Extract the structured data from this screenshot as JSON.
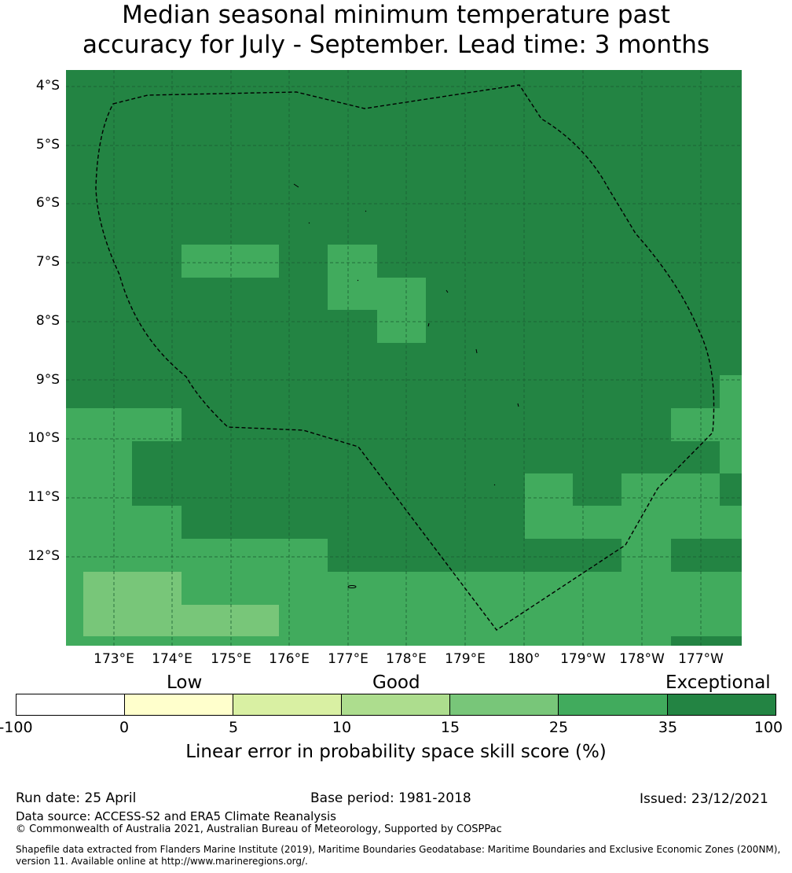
{
  "title_line1": "Median seasonal minimum temperature past",
  "title_line2": "accuracy for July - September. Lead time: 3 months",
  "lat_labels": [
    "4°S",
    "5°S",
    "6°S",
    "7°S",
    "8°S",
    "9°S",
    "10°S",
    "11°S",
    "12°S"
  ],
  "lon_labels": [
    "173°E",
    "174°E",
    "175°E",
    "176°E",
    "177°E",
    "178°E",
    "179°E",
    "180°",
    "179°W",
    "178°W",
    "177°W"
  ],
  "categories": {
    "low": "Low",
    "good": "Good",
    "exceptional": "Exceptional"
  },
  "colorbar": {
    "ticks": [
      "-100",
      "0",
      "5",
      "10",
      "15",
      "25",
      "35",
      "100"
    ],
    "colors": [
      "#ffffff",
      "#ffffcc",
      "#d9f0a3",
      "#addd8e",
      "#78c679",
      "#41ab5d",
      "#238443"
    ],
    "label": "Linear error in probability space skill score (%)"
  },
  "footer": {
    "run_date": "Run date: 25 April",
    "base_period": "Base period: 1981-2018",
    "issued": "Issued: 23/12/2021",
    "data_source": "Data source: ACCESS-S2 and ERA5 Climate Reanalysis",
    "copyright": "© Commonwealth of Australia 2021, Australian Bureau of Meteorology, Supported by COSPPac",
    "shapefile_line1": "Shapefile data extracted from Flanders Marine Institute (2019), Maritime Boundaries Geodatabase: Maritime Boundaries and Exclusive Economic Zones (200NM),",
    "shapefile_line2": "version 11. Available online at http://www.marineregions.org/."
  }
}
